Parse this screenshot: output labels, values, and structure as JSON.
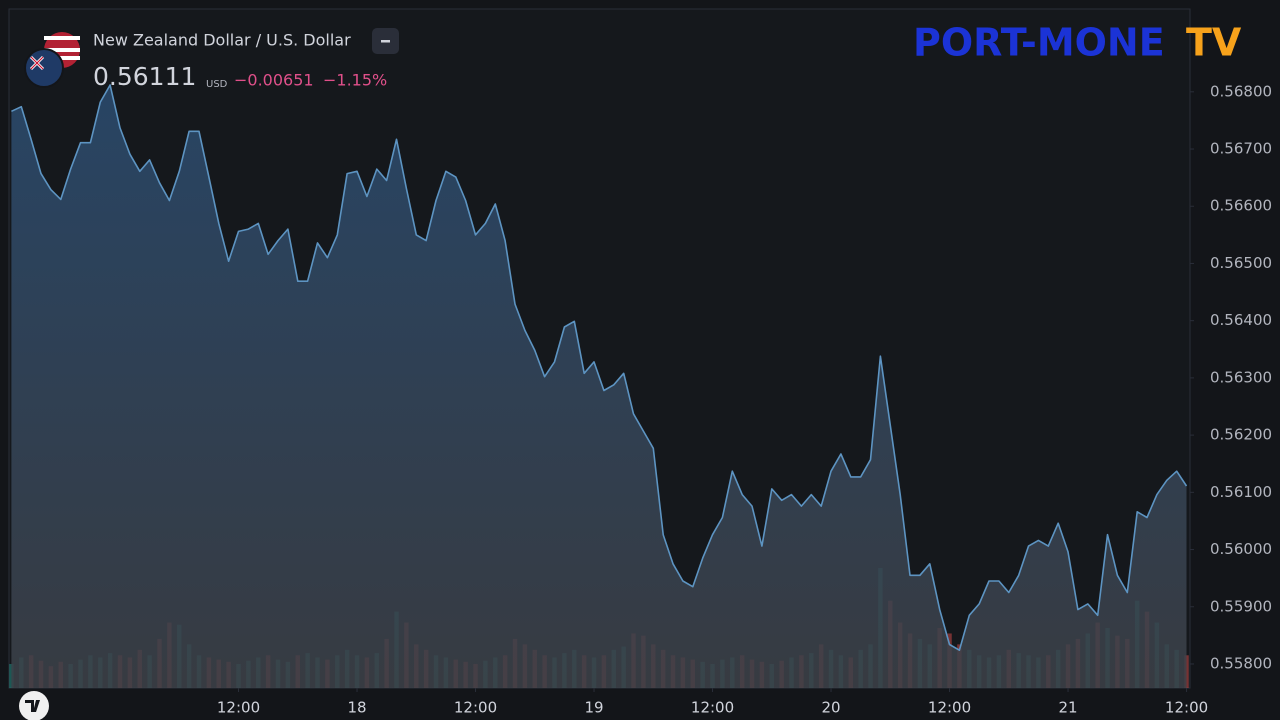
{
  "chart_data": {
    "type": "area",
    "title": "New Zealand Dollar / U.S. Dollar",
    "price": "0.56111",
    "currency": "USD",
    "change": "−0.00651",
    "change_pct": "−1.15%",
    "logo": {
      "main": "PORT-MONE",
      "tail": "TV"
    },
    "color": "#5d94c2",
    "xlim": [
      -11.14,
      108.35
    ],
    "xticks": [
      {
        "value": 12,
        "label": "12:00"
      },
      {
        "value": 24,
        "label": "18"
      },
      {
        "value": 36,
        "label": "12:00"
      },
      {
        "value": 48,
        "label": "19"
      },
      {
        "value": 60,
        "label": "12:00"
      },
      {
        "value": 72,
        "label": "20"
      },
      {
        "value": 84,
        "label": "12:00"
      },
      {
        "value": 96,
        "label": "21"
      },
      {
        "value": 108,
        "label": "12:00"
      }
    ],
    "ylim": [
      0.55758,
      0.56943
    ],
    "yticks": [
      {
        "value": 0.558,
        "label": "0.55800"
      },
      {
        "value": 0.559,
        "label": "0.55900"
      },
      {
        "value": 0.56,
        "label": "0.56000"
      },
      {
        "value": 0.561,
        "label": "0.56100"
      },
      {
        "value": 0.562,
        "label": "0.56200"
      },
      {
        "value": 0.563,
        "label": "0.56300"
      },
      {
        "value": 0.564,
        "label": "0.56400"
      },
      {
        "value": 0.565,
        "label": "0.56500"
      },
      {
        "value": 0.566,
        "label": "0.56600"
      },
      {
        "value": 0.567,
        "label": "0.56700"
      },
      {
        "value": 0.568,
        "label": "0.56800"
      }
    ],
    "x": [
      -11,
      -10,
      -9,
      -8,
      -7,
      -6,
      -5,
      -4,
      -3,
      -2,
      -1,
      0,
      1,
      2,
      3,
      4,
      5,
      6,
      7,
      8,
      9,
      10,
      11,
      12,
      13,
      14,
      15,
      16,
      17,
      18,
      19,
      20,
      21,
      22,
      23,
      24,
      25,
      26,
      27,
      28,
      29,
      30,
      31,
      32,
      33,
      34,
      35,
      36,
      37,
      38,
      39,
      40,
      41,
      42,
      43,
      44,
      45,
      46,
      47,
      48,
      49,
      50,
      51,
      52,
      53,
      54,
      55,
      56,
      57,
      58,
      59,
      60,
      61,
      62,
      63,
      64,
      65,
      66,
      67,
      68,
      69,
      70,
      71,
      72,
      73,
      74,
      75,
      76,
      77,
      78,
      79,
      80,
      81,
      82,
      83,
      84,
      85,
      86,
      87,
      88,
      89,
      90,
      91,
      92,
      93,
      94,
      95,
      96,
      97,
      98,
      99,
      100,
      101,
      102,
      103,
      104,
      105,
      106,
      107,
      108
    ],
    "values": [
      0.56766,
      0.56774,
      0.56717,
      0.56657,
      0.56629,
      0.56612,
      0.56665,
      0.56711,
      0.56711,
      0.56782,
      0.56812,
      0.56737,
      0.56691,
      0.56661,
      0.56681,
      0.56641,
      0.5661,
      0.56661,
      0.56731,
      0.56731,
      0.56651,
      0.5657,
      0.56504,
      0.56556,
      0.5656,
      0.5657,
      0.56516,
      0.5654,
      0.5656,
      0.56469,
      0.56469,
      0.56536,
      0.5651,
      0.5655,
      0.56657,
      0.56661,
      0.56617,
      0.56665,
      0.56645,
      0.56717,
      0.56631,
      0.5655,
      0.5654,
      0.5661,
      0.56661,
      0.56651,
      0.5661,
      0.5655,
      0.5657,
      0.56604,
      0.5654,
      0.56429,
      0.56383,
      0.56348,
      0.56302,
      0.56328,
      0.56389,
      0.56399,
      0.56308,
      0.56328,
      0.56278,
      0.56288,
      0.56308,
      0.56237,
      0.56207,
      0.56177,
      0.56026,
      0.55975,
      0.55945,
      0.55935,
      0.55985,
      0.56026,
      0.56056,
      0.56137,
      0.56096,
      0.56076,
      0.56006,
      0.56106,
      0.56086,
      0.56096,
      0.56076,
      0.56096,
      0.56076,
      0.56137,
      0.56167,
      0.56127,
      0.56127,
      0.56157,
      0.56338,
      0.56217,
      0.56096,
      0.55955,
      0.55955,
      0.55975,
      0.55895,
      0.55834,
      0.55824,
      0.55885,
      0.55905,
      0.55945,
      0.55945,
      0.55925,
      0.55955,
      0.56006,
      0.56016,
      0.56006,
      0.56046,
      0.55996,
      0.55895,
      0.55905,
      0.55885,
      0.56026,
      0.55955,
      0.55925,
      0.56066,
      0.56056,
      0.56096,
      0.56121,
      0.56137,
      0.56111
    ],
    "volume": [
      22,
      28,
      30,
      25,
      20,
      24,
      22,
      26,
      30,
      28,
      32,
      30,
      28,
      35,
      30,
      45,
      60,
      58,
      40,
      30,
      28,
      26,
      24,
      22,
      25,
      28,
      30,
      26,
      24,
      30,
      32,
      28,
      26,
      30,
      35,
      30,
      28,
      32,
      45,
      70,
      60,
      40,
      35,
      30,
      28,
      26,
      24,
      22,
      25,
      28,
      30,
      45,
      40,
      35,
      30,
      28,
      32,
      35,
      30,
      28,
      30,
      35,
      38,
      50,
      48,
      40,
      35,
      30,
      28,
      26,
      24,
      22,
      26,
      28,
      30,
      26,
      24,
      22,
      25,
      28,
      30,
      32,
      40,
      35,
      30,
      28,
      35,
      40,
      110,
      80,
      60,
      50,
      45,
      40,
      55,
      50,
      40,
      35,
      30,
      28,
      30,
      35,
      32,
      30,
      28,
      30,
      35,
      40,
      45,
      50,
      60,
      55,
      48,
      45,
      80,
      70,
      60,
      40,
      35,
      30
    ],
    "up_color": "#26a69a",
    "down_color": "#ef5350"
  }
}
